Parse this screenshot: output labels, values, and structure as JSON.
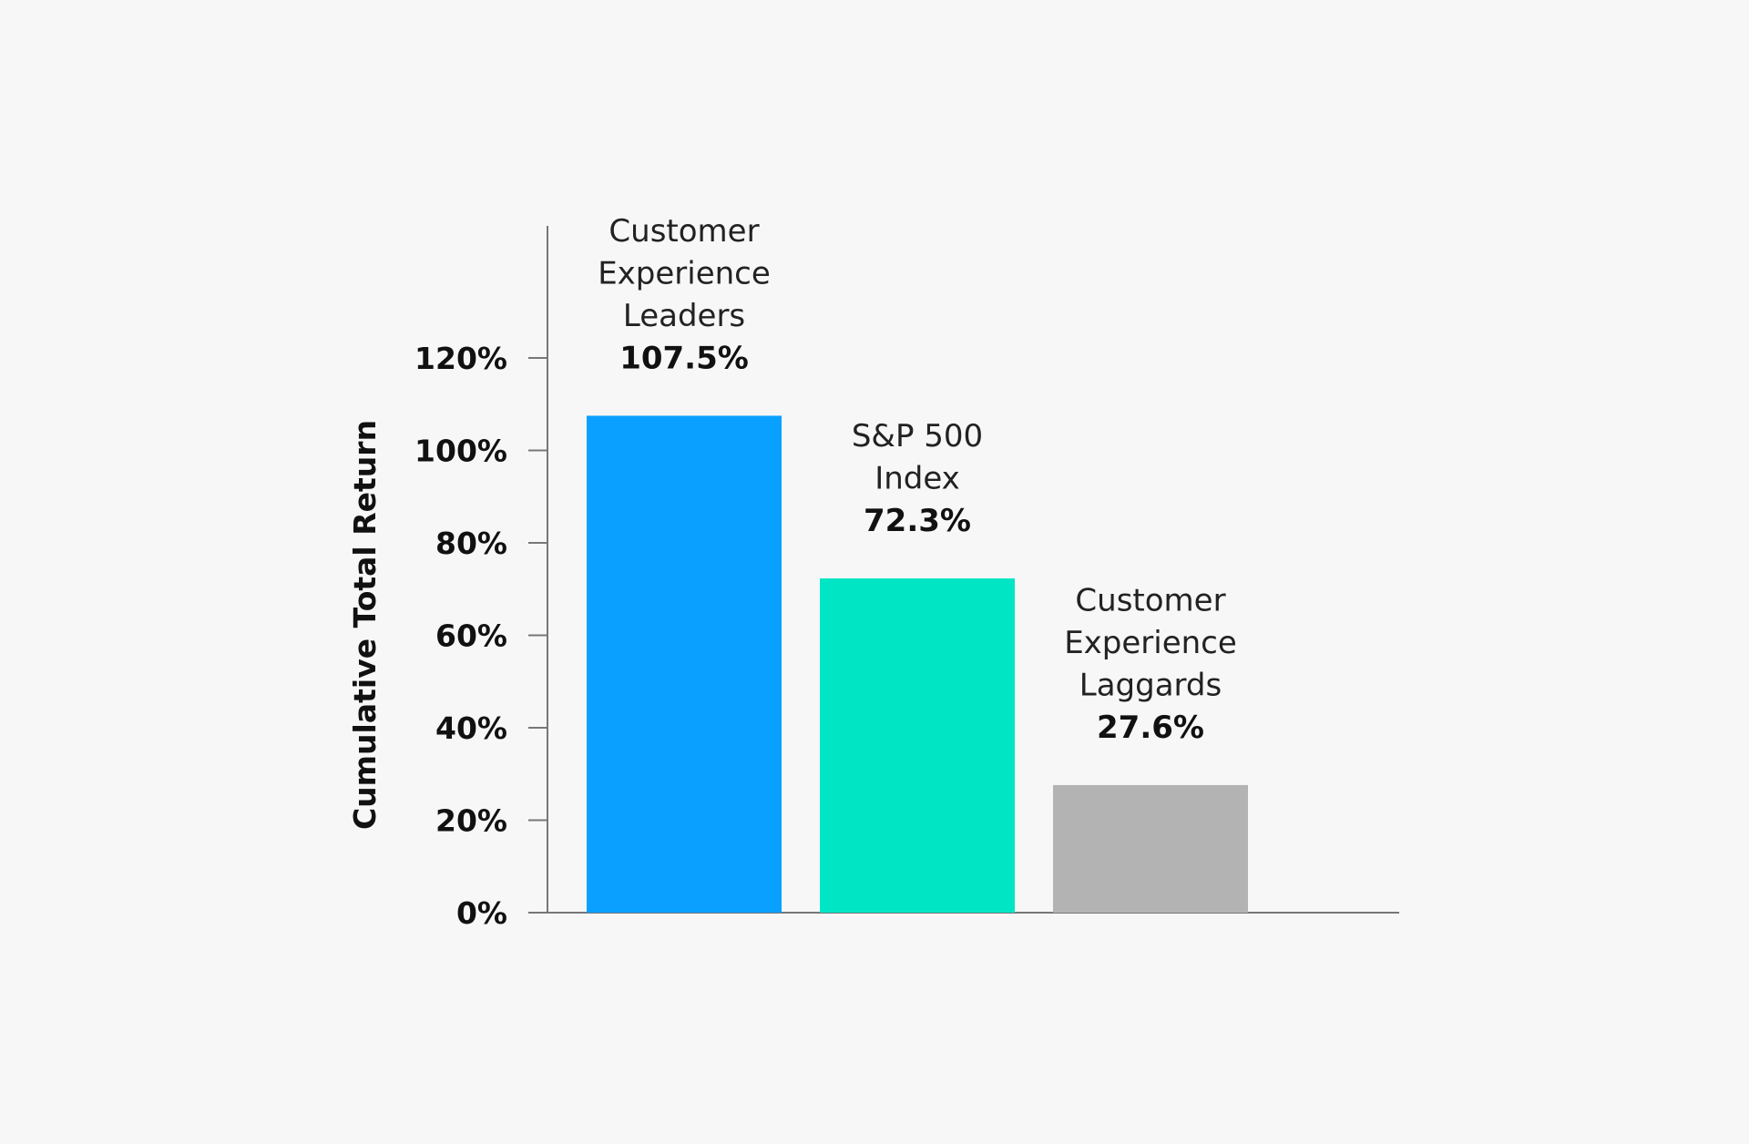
{
  "chart_data": {
    "type": "bar",
    "categories": [
      [
        "Customer",
        "Experience",
        "Leaders"
      ],
      [
        "S&P 500",
        "Index"
      ],
      [
        "Customer",
        "Experience",
        "Laggards"
      ]
    ],
    "values": [
      107.5,
      72.3,
      27.6
    ],
    "value_labels": [
      "107.5%",
      "72.3%",
      "27.6%"
    ],
    "colors": [
      "#0aa0ff",
      "#00e5c4",
      "#b3b3b3"
    ],
    "title": "",
    "xlabel": "",
    "ylabel": "Cumulative Total Return",
    "ylim": [
      0,
      120
    ],
    "yticks": [
      0,
      20,
      40,
      60,
      80,
      100,
      120
    ],
    "ytick_labels": [
      "0%",
      "20%",
      "40%",
      "60%",
      "80%",
      "100%",
      "120%"
    ],
    "grid": false,
    "legend": "none",
    "axis_color": "#777777",
    "background": "#f7f7f7"
  }
}
